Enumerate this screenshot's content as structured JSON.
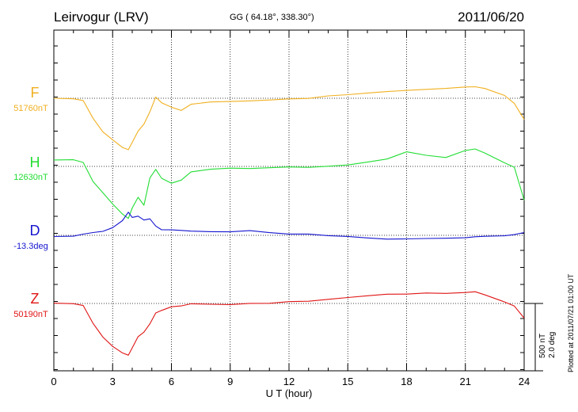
{
  "header": {
    "station": "Leirvogur (LRV)",
    "coords": "GG ( 64.18°, 338.30°)",
    "date": "2011/06/20"
  },
  "footer": {
    "plotted": "Plotted at 2011/07/21 01:00 UT",
    "scale_nt": "500 nT",
    "scale_deg": "2.0 deg"
  },
  "chart_data": {
    "type": "line",
    "title": "Leirvogur (LRV)",
    "xlabel": "U T (hour)",
    "ylabel": "",
    "xlim": [
      0,
      24
    ],
    "xticks": [
      "0",
      "3",
      "6",
      "9",
      "12",
      "15",
      "18",
      "21",
      "24"
    ],
    "grid": true,
    "scale_bar": {
      "nT": 500,
      "deg": 2.0
    },
    "series": [
      {
        "name": "F",
        "baseline_label": "51760nT",
        "color": "#f0b020",
        "unit": "nT",
        "baseline": 51760,
        "x": [
          0,
          1.0,
          1.5,
          2.0,
          2.5,
          3.0,
          3.5,
          3.8,
          4.0,
          4.3,
          4.6,
          4.9,
          5.2,
          5.5,
          6.0,
          6.5,
          7.0,
          8,
          9,
          10,
          11,
          12,
          13,
          14,
          15,
          16,
          17,
          18,
          19,
          20,
          21,
          21.5,
          22,
          23,
          23.5,
          24
        ],
        "values": [
          0,
          0,
          -10,
          -140,
          -240,
          -300,
          -360,
          -380,
          -330,
          -250,
          -200,
          -110,
          0,
          -40,
          -70,
          -90,
          -40,
          -20,
          -15,
          -10,
          -5,
          0,
          0,
          15,
          20,
          30,
          40,
          50,
          60,
          70,
          85,
          90,
          80,
          30,
          -30,
          -150
        ]
      },
      {
        "name": "H",
        "baseline_label": "12630nT",
        "color": "#22dd33",
        "unit": "nT",
        "baseline": 12630,
        "x": [
          0,
          1.0,
          1.5,
          2.0,
          2.5,
          3.0,
          3.5,
          3.8,
          4.0,
          4.3,
          4.6,
          4.9,
          5.2,
          5.5,
          6.0,
          6.5,
          7.0,
          8,
          9,
          10,
          11,
          12,
          13,
          14,
          15,
          16,
          17,
          18,
          19,
          20,
          21,
          21.5,
          22,
          23,
          23.5,
          24
        ],
        "values": [
          40,
          40,
          20,
          -120,
          -200,
          -280,
          -350,
          -380,
          -300,
          -220,
          -280,
          -80,
          -20,
          -90,
          -130,
          -110,
          -50,
          -30,
          -20,
          -20,
          -10,
          0,
          0,
          10,
          20,
          40,
          60,
          110,
          80,
          60,
          110,
          120,
          90,
          20,
          -10,
          -250
        ]
      },
      {
        "name": "D",
        "baseline_label": "-13.3deg",
        "color": "#1515d0",
        "unit": "deg",
        "baseline": -13.3,
        "x": [
          0,
          1.0,
          1.5,
          2.0,
          2.5,
          3.0,
          3.5,
          3.8,
          4.0,
          4.3,
          4.6,
          4.9,
          5.2,
          5.5,
          6.0,
          6.5,
          7.0,
          8,
          9,
          10,
          11,
          12,
          13,
          14,
          15,
          16,
          17,
          18,
          19,
          20,
          21,
          21.5,
          22,
          23,
          23.5,
          24
        ],
        "values": [
          0,
          0,
          0.05,
          0.08,
          0.1,
          0.2,
          0.4,
          0.65,
          0.5,
          0.55,
          0.45,
          0.5,
          0.3,
          0.2,
          0.2,
          0.18,
          0.15,
          0.12,
          0.1,
          0.12,
          0.05,
          0.0,
          0.0,
          -0.04,
          -0.05,
          -0.08,
          -0.1,
          -0.08,
          -0.06,
          -0.05,
          -0.04,
          -0.02,
          -0.02,
          -0.02,
          0.0,
          0.05
        ]
      },
      {
        "name": "Z",
        "baseline_label": "50190nT",
        "color": "#e01515",
        "unit": "nT",
        "baseline": 50190,
        "x": [
          0,
          1.0,
          1.5,
          2.0,
          2.5,
          3.0,
          3.5,
          3.8,
          4.0,
          4.3,
          4.6,
          4.9,
          5.2,
          5.5,
          6.0,
          6.5,
          7.0,
          8,
          9,
          10,
          11,
          12,
          13,
          14,
          15,
          16,
          17,
          18,
          19,
          20,
          21,
          21.5,
          22,
          23,
          23.5,
          24
        ],
        "values": [
          0,
          0,
          -10,
          -140,
          -240,
          -310,
          -360,
          -380,
          -330,
          -250,
          -220,
          -160,
          -80,
          -60,
          -30,
          -20,
          0,
          0,
          0,
          10,
          10,
          20,
          20,
          30,
          40,
          50,
          60,
          60,
          70,
          70,
          80,
          90,
          70,
          20,
          -10,
          -100
        ]
      }
    ]
  }
}
